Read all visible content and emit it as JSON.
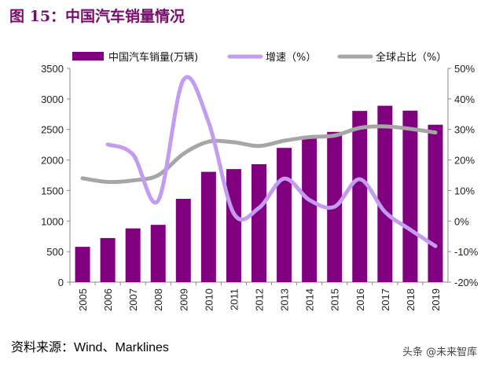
{
  "title": "图 15：中国汽车销量情况",
  "source": "资料来源：Wind、Marklines",
  "watermark": "头条 @未来智库",
  "chart_data": {
    "type": "bar+line",
    "title": "",
    "categories": [
      "2005",
      "2006",
      "2007",
      "2008",
      "2009",
      "2010",
      "2011",
      "2012",
      "2013",
      "2014",
      "2015",
      "2016",
      "2017",
      "2018",
      "2019"
    ],
    "series": [
      {
        "name": "中国汽车销量(万辆)",
        "type": "bar",
        "axis": "left",
        "color": "#800080",
        "values": [
          578,
          722,
          880,
          938,
          1364,
          1806,
          1851,
          1931,
          2198,
          2349,
          2460,
          2803,
          2888,
          2808,
          2577
        ]
      },
      {
        "name": "增速（%）",
        "type": "line",
        "axis": "right",
        "color": "#c39bf0",
        "values": [
          null,
          25.1,
          21.8,
          6.7,
          46.2,
          32.4,
          2.5,
          4.3,
          13.9,
          6.9,
          4.7,
          13.7,
          3.0,
          -2.8,
          -8.2
        ]
      },
      {
        "name": "全球占比（%）",
        "type": "line",
        "axis": "right",
        "color": "#a6a6a6",
        "values": [
          14.0,
          12.8,
          13.3,
          15.0,
          22.0,
          26.0,
          25.8,
          24.6,
          26.3,
          27.5,
          28.0,
          30.5,
          31.0,
          30.2,
          29.0
        ]
      }
    ],
    "y_left": {
      "range": [
        0,
        3500
      ],
      "ticks": [
        "0",
        "500",
        "1000",
        "1500",
        "2000",
        "2500",
        "3000",
        "3500"
      ]
    },
    "y_right": {
      "range": [
        -20,
        50
      ],
      "ticks": [
        "-20%",
        "-10%",
        "0%",
        "10%",
        "20%",
        "30%",
        "40%",
        "50%"
      ]
    },
    "grid": false,
    "legend": "top"
  }
}
